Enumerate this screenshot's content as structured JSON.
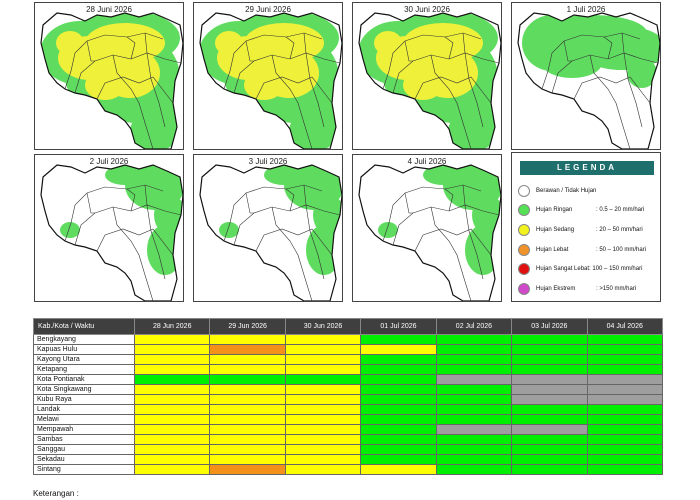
{
  "colors": {
    "ringan": "#55e055",
    "sedang": "#f2f21e",
    "lebat": "#f0922a",
    "sangat_lebat": "#e01010",
    "ekstrem": "#d049c8",
    "berawan": "#ffffff",
    "no_data": "#a8a8a8",
    "table_green": "#00ee00",
    "table_yellow": "#ffff00",
    "table_orange": "#f39218",
    "table_grey": "#9e9e9e"
  },
  "maps": [
    {
      "title": "28 Juni 2026",
      "coverage": "heavy"
    },
    {
      "title": "29 Juni 2026",
      "coverage": "heavy"
    },
    {
      "title": "30 Juni 2026",
      "coverage": "heavy"
    },
    {
      "title": "1 Juli 2026",
      "coverage": "medium"
    },
    {
      "title": "2 Juli 2026",
      "coverage": "light"
    },
    {
      "title": "3 Juli 2026",
      "coverage": "light"
    },
    {
      "title": "4 Juli 2026",
      "coverage": "light"
    }
  ],
  "legend": {
    "title": "LEGENDA",
    "items": [
      {
        "label": "Berawan / Tidak Hujan",
        "range": "",
        "color_key": "berawan"
      },
      {
        "label": "Hujan Ringan",
        "range": ": 0.5 – 20 mm/hari",
        "color_key": "ringan"
      },
      {
        "label": "Hujan Sedang",
        "range": ": 20 – 50 mm/hari",
        "color_key": "sedang"
      },
      {
        "label": "Hujan Lebat",
        "range": ": 50 – 100 mm/hari",
        "color_key": "lebat"
      },
      {
        "label": "Hujan Sangat Lebat",
        "range": ": 100 – 150 mm/hari",
        "color_key": "sangat_lebat"
      },
      {
        "label": "Hujan Ekstrem",
        "range": ": >150 mm/hari",
        "color_key": "ekstrem"
      }
    ]
  },
  "table": {
    "header_label": "Kab./Kota / Waktu",
    "dates": [
      "28 Jun 2026",
      "29 Jun 2026",
      "30 Jun 2026",
      "01 Jul 2026",
      "02 Jul 2026",
      "03 Jul 2026",
      "04 Jul 2026"
    ],
    "rows": [
      {
        "name": "Bengkayang",
        "cells": [
          "Y",
          "Y",
          "Y",
          "G",
          "G",
          "G",
          "G"
        ]
      },
      {
        "name": "Kapuas Hulu",
        "cells": [
          "Y",
          "O",
          "Y",
          "Y",
          "G",
          "G",
          "G"
        ]
      },
      {
        "name": "Kayong Utara",
        "cells": [
          "Y",
          "Y",
          "Y",
          "G",
          "G",
          "G",
          "G"
        ]
      },
      {
        "name": "Ketapang",
        "cells": [
          "Y",
          "Y",
          "Y",
          "G",
          "G",
          "G",
          "G"
        ]
      },
      {
        "name": "Kota Pontianak",
        "cells": [
          "G",
          "G",
          "G",
          "G",
          "N",
          "N",
          "N"
        ]
      },
      {
        "name": "Kota Singkawang",
        "cells": [
          "Y",
          "Y",
          "Y",
          "G",
          "G",
          "N",
          "N"
        ]
      },
      {
        "name": "Kubu Raya",
        "cells": [
          "Y",
          "Y",
          "Y",
          "G",
          "G",
          "N",
          "N"
        ]
      },
      {
        "name": "Landak",
        "cells": [
          "Y",
          "Y",
          "Y",
          "G",
          "G",
          "G",
          "G"
        ]
      },
      {
        "name": "Melawi",
        "cells": [
          "Y",
          "Y",
          "Y",
          "G",
          "G",
          "G",
          "G"
        ]
      },
      {
        "name": "Mempawah",
        "cells": [
          "Y",
          "Y",
          "Y",
          "G",
          "N",
          "N",
          "G"
        ]
      },
      {
        "name": "Sambas",
        "cells": [
          "Y",
          "Y",
          "Y",
          "G",
          "G",
          "G",
          "G"
        ]
      },
      {
        "name": "Sanggau",
        "cells": [
          "Y",
          "Y",
          "Y",
          "G",
          "G",
          "G",
          "G"
        ]
      },
      {
        "name": "Sekadau",
        "cells": [
          "Y",
          "Y",
          "Y",
          "G",
          "G",
          "G",
          "G"
        ]
      },
      {
        "name": "Sintang",
        "cells": [
          "Y",
          "O",
          "Y",
          "Y",
          "G",
          "G",
          "G"
        ]
      }
    ]
  },
  "footer": {
    "note": "Keterangan :"
  }
}
